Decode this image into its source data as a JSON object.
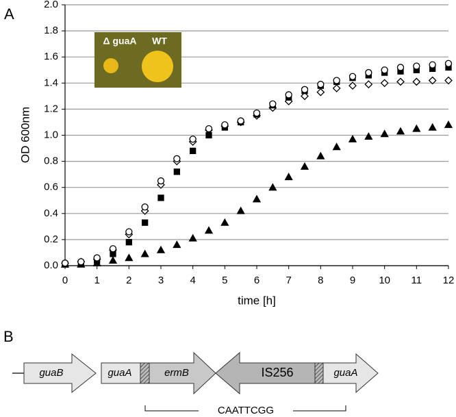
{
  "chart_data": {
    "type": "scatter",
    "panel_label": "A",
    "x_label": "time [h]",
    "y_label": "OD 600nm",
    "inset_labels": [
      "Δ guaA",
      "WT"
    ],
    "x": [
      0,
      0.5,
      1,
      1.5,
      2,
      2.5,
      3,
      3.5,
      4,
      4.5,
      5,
      5.5,
      6,
      6.5,
      7,
      7.5,
      8,
      8.5,
      9,
      9.5,
      10,
      10.5,
      11,
      11.5,
      12
    ],
    "series": [
      {
        "marker": "circle",
        "filled": false,
        "color": "#000000",
        "values": [
          0.02,
          0.03,
          0.06,
          0.13,
          0.26,
          0.45,
          0.65,
          0.82,
          0.97,
          1.05,
          1.08,
          1.11,
          1.17,
          1.24,
          1.31,
          1.35,
          1.39,
          1.42,
          1.45,
          1.48,
          1.5,
          1.52,
          1.53,
          1.54,
          1.55
        ]
      },
      {
        "marker": "square",
        "filled": true,
        "color": "#000000",
        "values": [
          0.01,
          0.02,
          0.04,
          0.09,
          0.18,
          0.33,
          0.52,
          0.72,
          0.88,
          1.0,
          1.06,
          1.1,
          1.16,
          1.23,
          1.29,
          1.34,
          1.38,
          1.41,
          1.44,
          1.46,
          1.48,
          1.49,
          1.5,
          1.51,
          1.52
        ]
      },
      {
        "marker": "diamond",
        "filled": false,
        "color": "#000000",
        "values": [
          0.02,
          0.03,
          0.05,
          0.12,
          0.24,
          0.42,
          0.62,
          0.8,
          0.95,
          1.04,
          1.07,
          1.1,
          1.15,
          1.21,
          1.26,
          1.3,
          1.33,
          1.36,
          1.38,
          1.39,
          1.4,
          1.41,
          1.41,
          1.42,
          1.42
        ]
      },
      {
        "marker": "triangle",
        "filled": true,
        "color": "#000000",
        "values": [
          0.01,
          0.01,
          0.02,
          0.04,
          0.06,
          0.09,
          0.12,
          0.16,
          0.21,
          0.27,
          0.33,
          0.42,
          0.51,
          0.6,
          0.68,
          0.76,
          0.84,
          0.91,
          0.97,
          0.99,
          1.01,
          1.03,
          1.05,
          1.06,
          1.08
        ]
      }
    ],
    "xlim": [
      0,
      12
    ],
    "xticks": [
      0,
      1,
      2,
      3,
      4,
      5,
      6,
      7,
      8,
      9,
      10,
      11,
      12
    ],
    "ylim": [
      0,
      2
    ],
    "yticks": [
      {
        "value": 0,
        "label": "0.0"
      },
      {
        "value": 0.2,
        "label": "0.2"
      },
      {
        "value": 0.4,
        "label": "0.4"
      },
      {
        "value": 0.6,
        "label": "0.6"
      },
      {
        "value": 0.8,
        "label": "0.8"
      },
      {
        "value": 1,
        "label": "1.0"
      },
      {
        "value": 1.2,
        "label": "1.2"
      },
      {
        "value": 1.4,
        "label": "1.4"
      },
      {
        "value": 1.6,
        "label": "1.6"
      },
      {
        "value": 1.8,
        "label": "1.8"
      },
      {
        "value": 2,
        "label": "2.0"
      }
    ],
    "grid": true
  },
  "diagram": {
    "panel_label": "B",
    "genes": [
      {
        "label": "guaB"
      },
      {
        "label": "guaA"
      },
      {
        "label": "ermB"
      },
      {
        "label": "IS256"
      },
      {
        "label": "guaA"
      }
    ],
    "sequence": "CAATTCGG"
  }
}
